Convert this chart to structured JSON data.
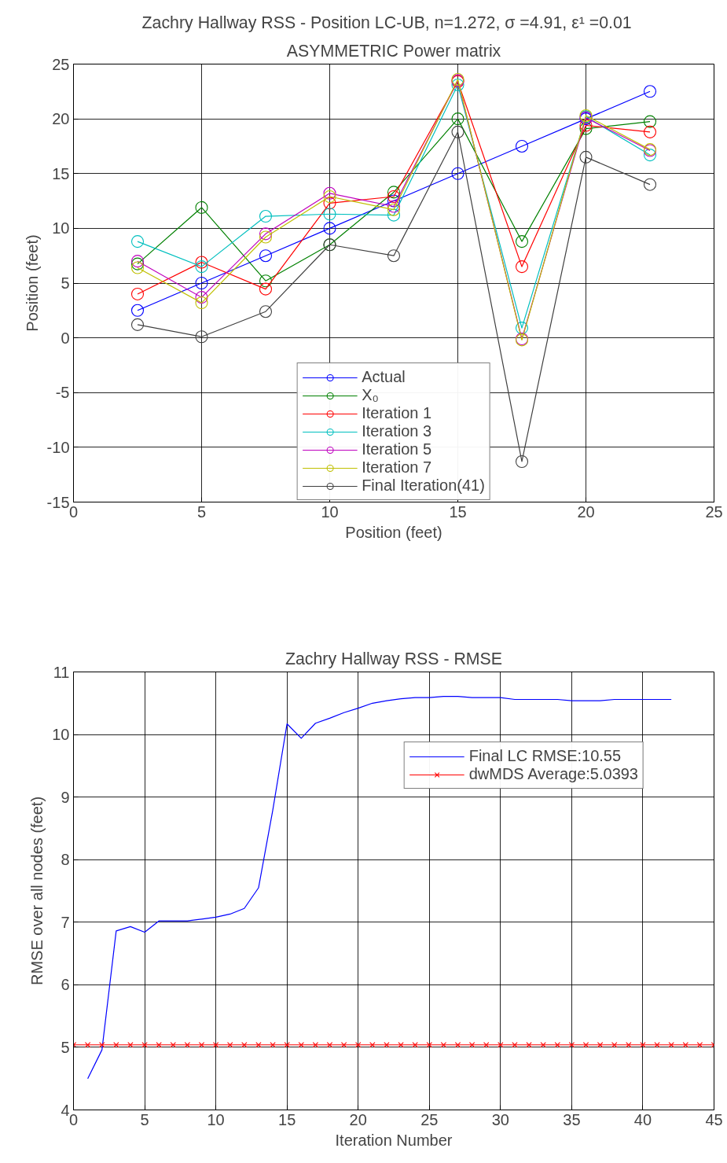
{
  "chart_data": [
    {
      "type": "line",
      "title": "Zachry Hallway RSS - Position LC-UB, n=1.272,   σ =4.91,  ε¹ =0.01",
      "subtitle": "ASYMMETRIC Power matrix",
      "xlabel": "Position (feet)",
      "ylabel": "Position (feet)",
      "x": [
        2.5,
        5,
        7.5,
        10,
        12.5,
        15,
        17.5,
        20,
        22.5
      ],
      "series": [
        {
          "name": "Actual",
          "color": "#0000ff",
          "values": [
            2.5,
            5,
            7.5,
            10,
            12.5,
            15,
            17.5,
            20,
            22.5
          ]
        },
        {
          "name": "X₀",
          "color": "#008000",
          "values": [
            6.75,
            11.9,
            5.2,
            8.5,
            13.3,
            20.0,
            8.8,
            19.1,
            19.75
          ]
        },
        {
          "name": "Iteration 1",
          "color": "#ff0000",
          "values": [
            4.0,
            6.9,
            4.45,
            12.3,
            12.9,
            23.4,
            6.5,
            19.4,
            18.8
          ]
        },
        {
          "name": "Iteration 3",
          "color": "#00bfbf",
          "values": [
            8.8,
            6.5,
            11.1,
            11.3,
            11.2,
            23.1,
            0.9,
            20.2,
            16.7
          ]
        },
        {
          "name": "Iteration 5",
          "color": "#bf00bf",
          "values": [
            7.0,
            3.7,
            9.5,
            13.2,
            12.0,
            23.5,
            -0.1,
            20.1,
            17.1
          ]
        },
        {
          "name": "Iteration 7",
          "color": "#bfbf00",
          "values": [
            6.4,
            3.2,
            9.2,
            12.9,
            11.7,
            23.6,
            -0.2,
            20.3,
            17.2
          ]
        },
        {
          "name": "Final Iteration(41)",
          "color": "#404040",
          "values": [
            1.2,
            0.1,
            2.4,
            8.5,
            7.5,
            18.8,
            -11.3,
            16.5,
            14.0
          ]
        }
      ],
      "xlim": [
        0,
        25
      ],
      "ylim": [
        -15,
        25
      ],
      "xticks": [
        0,
        5,
        10,
        15,
        20,
        25
      ],
      "yticks": [
        -15,
        -10,
        -5,
        0,
        5,
        10,
        15,
        20,
        25
      ],
      "grid": true,
      "legend": "bottom",
      "marker": "circle"
    },
    {
      "type": "line",
      "title": "Zachry Hallway RSS - RMSE",
      "xlabel": "Iteration Number",
      "ylabel": "RMSE over all nodes (feet)",
      "series": [
        {
          "name": "Final LC RMSE:10.55",
          "color": "#0000ff",
          "marker": "none",
          "x": [
            1,
            2,
            3,
            4,
            5,
            6,
            7,
            8,
            9,
            10,
            11,
            12,
            13,
            14,
            15,
            16,
            17,
            18,
            19,
            20,
            21,
            22,
            23,
            24,
            25,
            26,
            27,
            28,
            29,
            30,
            31,
            32,
            33,
            34,
            35,
            36,
            37,
            38,
            39,
            40,
            41,
            42
          ],
          "values": [
            4.5,
            4.96,
            6.86,
            6.93,
            6.84,
            7.02,
            7.02,
            7.02,
            7.05,
            7.08,
            7.13,
            7.22,
            7.55,
            8.79,
            10.17,
            9.94,
            10.18,
            10.26,
            10.35,
            10.42,
            10.5,
            10.54,
            10.57,
            10.59,
            10.59,
            10.61,
            10.61,
            10.59,
            10.59,
            10.59,
            10.56,
            10.56,
            10.56,
            10.56,
            10.54,
            10.54,
            10.54,
            10.56,
            10.56,
            10.56,
            10.56,
            10.56
          ]
        },
        {
          "name": "dwMDS Average:5.0393",
          "color": "#ff0000",
          "marker": "cross",
          "x": [
            0,
            1,
            2,
            3,
            4,
            5,
            6,
            7,
            8,
            9,
            10,
            11,
            12,
            13,
            14,
            15,
            16,
            17,
            18,
            19,
            20,
            21,
            22,
            23,
            24,
            25,
            26,
            27,
            28,
            29,
            30,
            31,
            32,
            33,
            34,
            35,
            36,
            37,
            38,
            39,
            40,
            41,
            42,
            43,
            44,
            45
          ],
          "values": [
            5.04,
            5.04,
            5.04,
            5.04,
            5.04,
            5.04,
            5.04,
            5.04,
            5.04,
            5.04,
            5.04,
            5.04,
            5.04,
            5.04,
            5.04,
            5.04,
            5.04,
            5.04,
            5.04,
            5.04,
            5.04,
            5.04,
            5.04,
            5.04,
            5.04,
            5.04,
            5.04,
            5.04,
            5.04,
            5.04,
            5.04,
            5.04,
            5.04,
            5.04,
            5.04,
            5.04,
            5.04,
            5.04,
            5.04,
            5.04,
            5.04,
            5.04,
            5.04,
            5.04,
            5.04,
            5.04
          ]
        }
      ],
      "xlim": [
        0,
        45
      ],
      "ylim": [
        4,
        11
      ],
      "xticks": [
        0,
        5,
        10,
        15,
        20,
        25,
        30,
        35,
        40,
        45
      ],
      "yticks": [
        4,
        5,
        6,
        7,
        8,
        9,
        10,
        11
      ],
      "grid": true,
      "legend": "top right"
    }
  ]
}
